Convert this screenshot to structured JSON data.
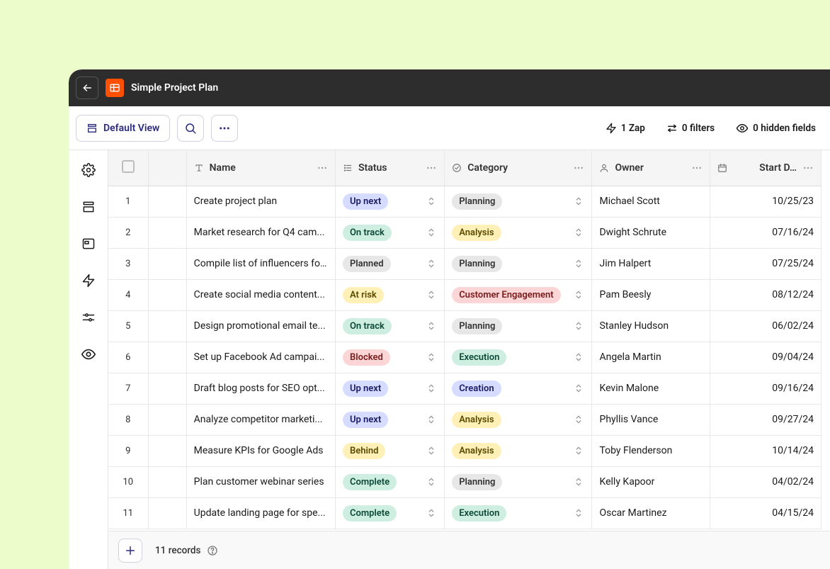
{
  "header": {
    "title": "Simple Project Plan"
  },
  "toolbar": {
    "default_view": "Default View",
    "zap": "1 Zap",
    "filters": "0 filters",
    "hidden_fields": "0 hidden fields"
  },
  "columns": {
    "name": "Name",
    "status": "Status",
    "category": "Category",
    "owner": "Owner",
    "start_date": "Start D…"
  },
  "status_colors": {
    "Up next": {
      "bg": "#d6dcff",
      "fg": "#1a1a66"
    },
    "On track": {
      "bg": "#cfeee2",
      "fg": "#0b4a37"
    },
    "Planned": {
      "bg": "#e7e7e7",
      "fg": "#333333"
    },
    "At risk": {
      "bg": "#fff0b8",
      "fg": "#5a4a00"
    },
    "Blocked": {
      "bg": "#fcd6d6",
      "fg": "#7a1a1a"
    },
    "Behind": {
      "bg": "#fff0b8",
      "fg": "#5a4a00"
    },
    "Complete": {
      "bg": "#cfeee2",
      "fg": "#0b4a37"
    }
  },
  "category_colors": {
    "Planning": {
      "bg": "#e7e7e7",
      "fg": "#333333"
    },
    "Analysis": {
      "bg": "#fff0b8",
      "fg": "#5a4a00"
    },
    "Customer Engagement": {
      "bg": "#fcd6d6",
      "fg": "#7a1a1a"
    },
    "Execution": {
      "bg": "#cfeee2",
      "fg": "#0b4a37"
    },
    "Creation": {
      "bg": "#d6dcff",
      "fg": "#1a1a66"
    }
  },
  "rows": [
    {
      "num": "1",
      "name": "Create project plan",
      "status": "Up next",
      "category": "Planning",
      "owner": "Michael Scott",
      "date": "10/25/23"
    },
    {
      "num": "2",
      "name": "Market research for Q4 cam...",
      "status": "On track",
      "category": "Analysis",
      "owner": "Dwight Schrute",
      "date": "07/16/24"
    },
    {
      "num": "3",
      "name": "Compile list of influencers fo...",
      "status": "Planned",
      "category": "Planning",
      "owner": "Jim Halpert",
      "date": "07/25/24"
    },
    {
      "num": "4",
      "name": "Create social media content...",
      "status": "At risk",
      "category": "Customer Engagement",
      "owner": "Pam Beesly",
      "date": "08/12/24"
    },
    {
      "num": "5",
      "name": "Design promotional email te...",
      "status": "On track",
      "category": "Planning",
      "owner": "Stanley Hudson",
      "date": "06/02/24"
    },
    {
      "num": "6",
      "name": "Set up Facebook Ad campai...",
      "status": "Blocked",
      "category": "Execution",
      "owner": "Angela Martin",
      "date": "09/04/24"
    },
    {
      "num": "7",
      "name": "Draft blog posts for SEO opt...",
      "status": "Up next",
      "category": "Creation",
      "owner": "Kevin Malone",
      "date": "09/16/24"
    },
    {
      "num": "8",
      "name": "Analyze competitor marketi...",
      "status": "Up next",
      "category": "Analysis",
      "owner": "Phyllis Vance",
      "date": "09/27/24"
    },
    {
      "num": "9",
      "name": "Measure KPIs for Google Ads",
      "status": "Behind",
      "category": "Analysis",
      "owner": "Toby Flenderson",
      "date": "10/14/24"
    },
    {
      "num": "10",
      "name": "Plan customer webinar series",
      "status": "Complete",
      "category": "Planning",
      "owner": "Kelly Kapoor",
      "date": "04/02/24"
    },
    {
      "num": "11",
      "name": "Update landing page for spe...",
      "status": "Complete",
      "category": "Execution",
      "owner": "Oscar Martinez",
      "date": "04/15/24"
    }
  ],
  "footer": {
    "records": "11 records"
  }
}
